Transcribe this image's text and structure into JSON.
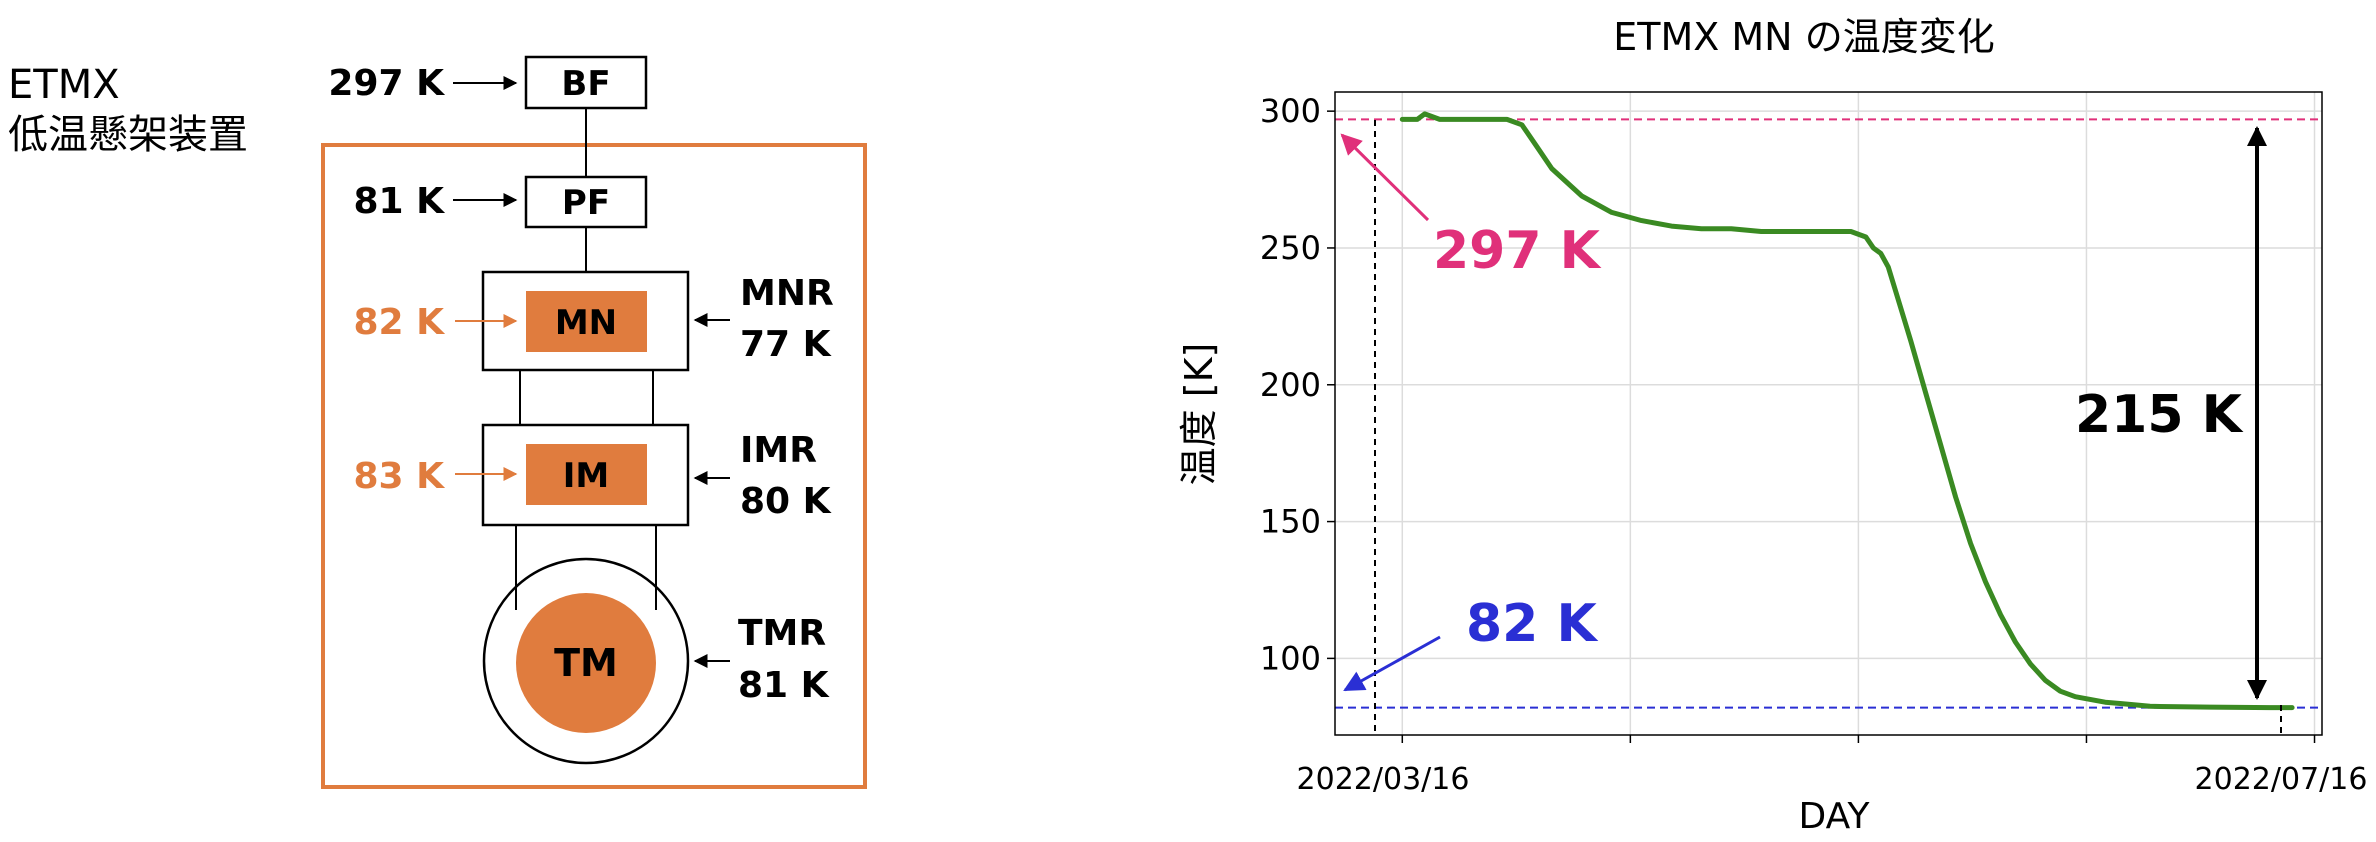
{
  "diagram": {
    "system_title_line1": "ETMX",
    "system_title_line2": "低温懸架装置",
    "stages": {
      "bf": {
        "name": "BF",
        "temp": "297 K"
      },
      "pf": {
        "name": "PF",
        "temp": "81 K"
      },
      "mn": {
        "name": "MN",
        "temp": "82 K"
      },
      "im": {
        "name": "IM",
        "temp": "83 K"
      },
      "tm": {
        "name": "TM"
      }
    },
    "rings": {
      "mnr": {
        "name": "MNR",
        "temp": "77 K"
      },
      "imr": {
        "name": "IMR",
        "temp": "80 K"
      },
      "tmr": {
        "name": "TMR",
        "temp": "81 K"
      }
    },
    "colors": {
      "orange": "#e07c3e",
      "black": "#000000"
    }
  },
  "chart_data": {
    "type": "line",
    "title": "ETMX MN の温度変化",
    "xlabel": "DAY",
    "ylabel": "温度 [K]",
    "x_tick_labels": [
      "2022/03/16",
      "2022/07/16"
    ],
    "yticks": [
      100,
      150,
      200,
      250,
      300
    ],
    "ylim": [
      72,
      307
    ],
    "grid": true,
    "series": [
      {
        "color": "#3a8a22",
        "x": [
          0,
          2,
          3,
          5,
          8,
          12,
          14,
          16,
          18,
          20,
          24,
          28,
          32,
          36,
          40,
          44,
          48,
          52,
          56,
          60,
          62,
          63,
          64,
          65,
          66,
          68,
          70,
          72,
          74,
          76,
          78,
          80,
          82,
          84,
          86,
          88,
          90,
          92,
          94,
          96,
          98,
          100,
          104,
          108,
          112,
          116,
          119
        ],
        "y": [
          297,
          297,
          299,
          297,
          297,
          297,
          297,
          295,
          287,
          279,
          269,
          263,
          260,
          258,
          257,
          257,
          256,
          256,
          256,
          256,
          254,
          250,
          248,
          243,
          234,
          216,
          197,
          178,
          159,
          142,
          128,
          116,
          106,
          98,
          92,
          88,
          86,
          85,
          84,
          83.5,
          83,
          82.5,
          82.3,
          82.2,
          82.1,
          82,
          82
        ]
      }
    ],
    "x_range": [
      -9,
      123
    ],
    "annotations": {
      "start_temp": "297 K",
      "end_temp": "82 K",
      "difference": "215 K",
      "ref_high": 297,
      "ref_low": 82,
      "ref_high_color": "#e0307a",
      "ref_low_color": "#2a2fd4"
    }
  }
}
